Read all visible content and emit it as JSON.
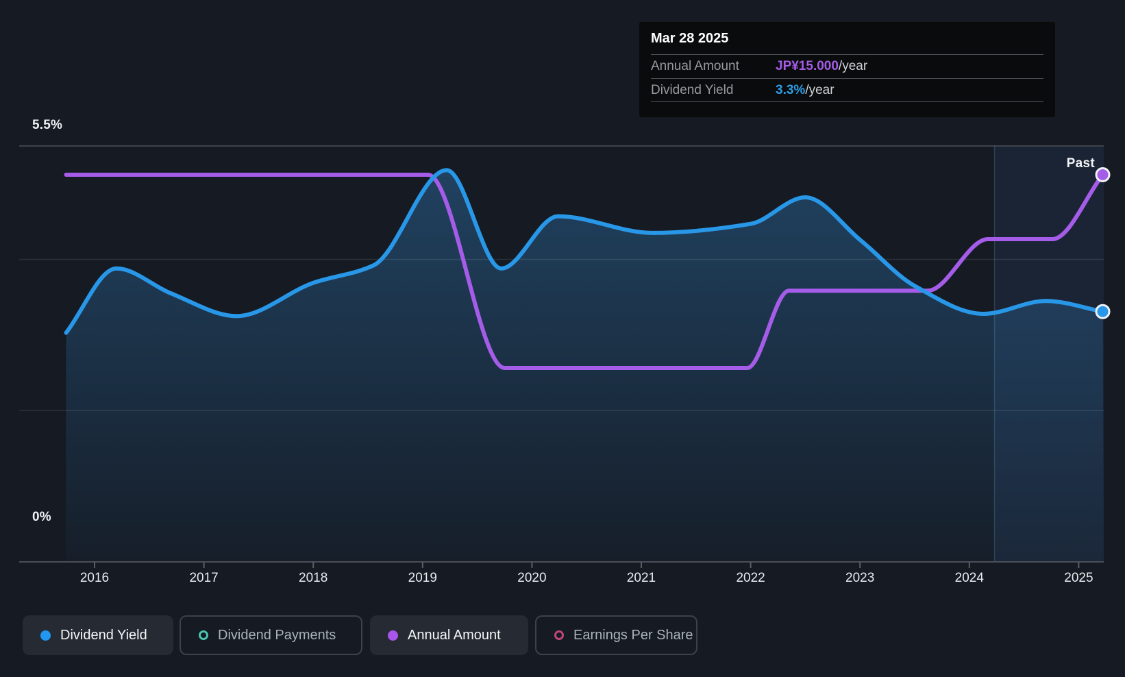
{
  "page": {
    "past_label": "Past"
  },
  "tooltip": {
    "date": "Mar 28 2025",
    "rows": [
      {
        "label": "Annual Amount",
        "value": "JP¥15.000",
        "unit": "/year",
        "color": "#a55ce8"
      },
      {
        "label": "Dividend Yield",
        "value": "3.3%",
        "unit": "/year",
        "color": "#2e9fe8"
      }
    ]
  },
  "chart_data": {
    "type": "line",
    "x_ticks": [
      2016,
      2017,
      2018,
      2019,
      2020,
      2021,
      2022,
      2023,
      2024,
      2025
    ],
    "xlim": [
      2015.74,
      2025.22
    ],
    "ylim_percent": [
      0,
      5.5
    ],
    "ylim_amount": [
      0,
      16.1
    ],
    "y_axis_labels": {
      "top": "5.5%",
      "bottom": "0%"
    },
    "gridlines_percent": [
      2,
      4
    ],
    "series": [
      {
        "name": "Dividend Yield",
        "unit": "%",
        "color": "#2997e8",
        "area": true,
        "points": [
          [
            2015.74,
            3.03
          ],
          [
            2016.2,
            3.88
          ],
          [
            2016.7,
            3.55
          ],
          [
            2017.3,
            3.25
          ],
          [
            2018.0,
            3.69
          ],
          [
            2018.55,
            3.92
          ],
          [
            2019.22,
            5.18
          ],
          [
            2019.72,
            3.88
          ],
          [
            2020.24,
            4.57
          ],
          [
            2021.1,
            4.35
          ],
          [
            2022.0,
            4.47
          ],
          [
            2022.5,
            4.82
          ],
          [
            2023.0,
            4.26
          ],
          [
            2023.5,
            3.65
          ],
          [
            2024.13,
            3.28
          ],
          [
            2024.7,
            3.45
          ],
          [
            2025.22,
            3.31
          ]
        ]
      },
      {
        "name": "Annual Amount",
        "unit": "JP¥/year",
        "color": "#a55ce8",
        "area": false,
        "points": [
          [
            2015.74,
            15
          ],
          [
            2017.5,
            15
          ],
          [
            2019.05,
            15
          ],
          [
            2019.75,
            7.5
          ],
          [
            2021.0,
            7.5
          ],
          [
            2021.97,
            7.5
          ],
          [
            2022.35,
            10.5
          ],
          [
            2023.1,
            10.5
          ],
          [
            2023.62,
            10.5
          ],
          [
            2024.17,
            12.5
          ],
          [
            2024.76,
            12.5
          ],
          [
            2025.22,
            15
          ]
        ]
      }
    ],
    "annotations": {
      "past_label": "Past",
      "divider_year": 2024.23
    }
  },
  "legend": [
    {
      "label": "Dividend Yield",
      "marker": "filled",
      "color": "#2196f3",
      "active": true
    },
    {
      "label": "Dividend Payments",
      "marker": "open",
      "color": "#49c5b1",
      "active": false
    },
    {
      "label": "Annual Amount",
      "marker": "filled",
      "color": "#a855eb",
      "active": true
    },
    {
      "label": "Earnings Per Share",
      "marker": "open",
      "color": "#c04678",
      "active": false
    }
  ]
}
